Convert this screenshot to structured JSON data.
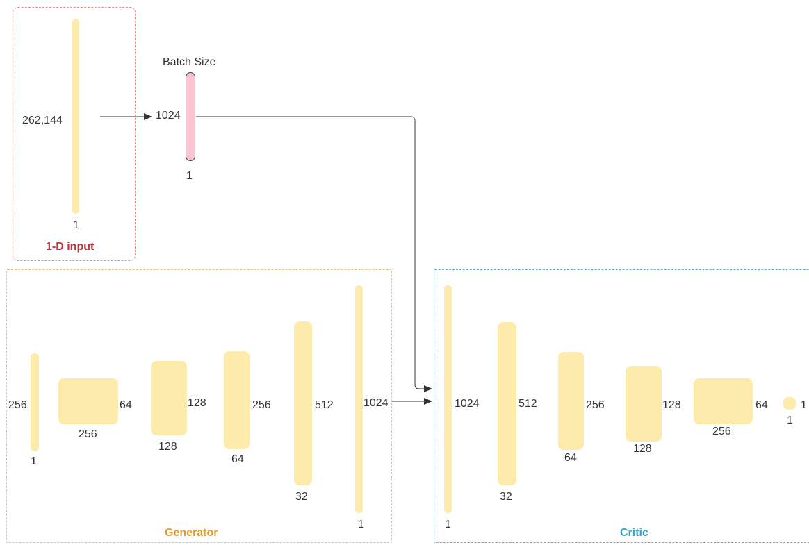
{
  "colors": {
    "input_border": "#e8888f",
    "input_title": "#c0303a",
    "generator_border": "#e8c07a",
    "generator_title": "#e39b2e",
    "critic_border": "#6aaabd",
    "critic_title": "#2ea7c9",
    "layer_fill": "#fcebaa",
    "batch_fill": "#f7c6d2",
    "batch_stroke": "#4a3a3f",
    "arrow": "#333333"
  },
  "input_box": {
    "title": "1-D input",
    "layer": {
      "height_label": "262,144",
      "width_label": "1"
    }
  },
  "batch": {
    "title": "Batch Size",
    "height_label": "1024",
    "width_label": "1"
  },
  "generator": {
    "title": "Generator",
    "layers": [
      {
        "height_label": "256",
        "width_label": "1"
      },
      {
        "height_label": "64",
        "width_label": "256"
      },
      {
        "height_label": "128",
        "width_label": "128"
      },
      {
        "height_label": "256",
        "width_label": "64"
      },
      {
        "height_label": "512",
        "width_label": "32"
      },
      {
        "height_label": "1024",
        "width_label": "1"
      }
    ]
  },
  "critic": {
    "title": "Critic",
    "layers": [
      {
        "height_label": "1024",
        "width_label": "1"
      },
      {
        "height_label": "512",
        "width_label": "32"
      },
      {
        "height_label": "256",
        "width_label": "64"
      },
      {
        "height_label": "128",
        "width_label": "128"
      },
      {
        "height_label": "64",
        "width_label": "256"
      },
      {
        "height_label": "1",
        "width_label": "1"
      }
    ]
  }
}
